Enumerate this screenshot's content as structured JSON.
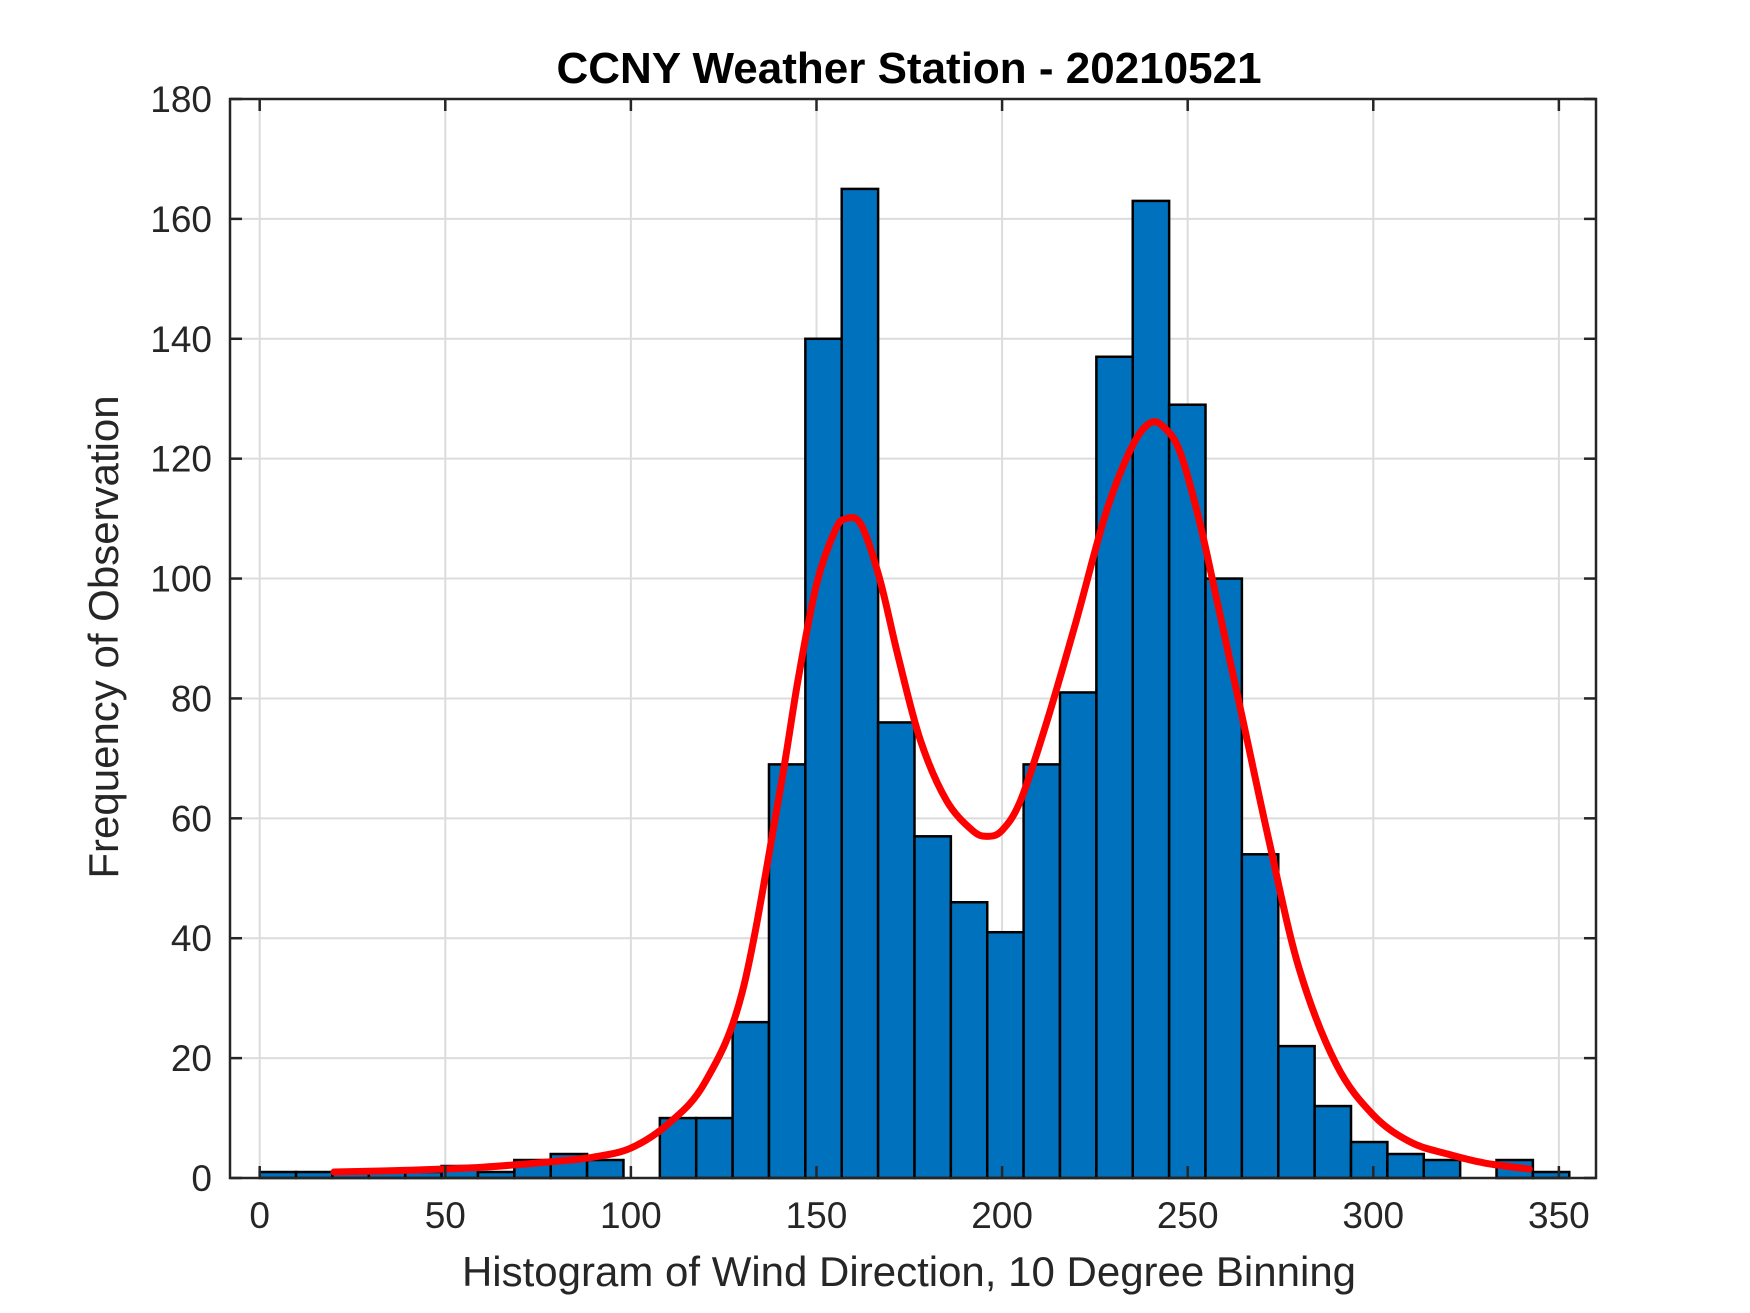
{
  "chart_data": {
    "type": "bar",
    "title": "CCNY Weather Station - 20210521",
    "xlabel": "Histogram of Wind Direction, 10 Degree Binning",
    "ylabel": "Frequency of Observation",
    "xlim": [
      -8,
      360
    ],
    "ylim": [
      0,
      180
    ],
    "xticks": [
      0,
      50,
      100,
      150,
      200,
      250,
      300,
      350
    ],
    "yticks": [
      0,
      20,
      40,
      60,
      80,
      100,
      120,
      140,
      160,
      180
    ],
    "grid": true,
    "bin_width": 9.8,
    "bins": [
      {
        "start": 0,
        "value": 1
      },
      {
        "start": 9.8,
        "value": 1
      },
      {
        "start": 19.6,
        "value": 1
      },
      {
        "start": 29.4,
        "value": 1
      },
      {
        "start": 39.2,
        "value": 1
      },
      {
        "start": 49.0,
        "value": 2
      },
      {
        "start": 58.8,
        "value": 1
      },
      {
        "start": 68.6,
        "value": 3
      },
      {
        "start": 78.4,
        "value": 4
      },
      {
        "start": 88.2,
        "value": 3
      },
      {
        "start": 107.8,
        "value": 10
      },
      {
        "start": 117.6,
        "value": 10
      },
      {
        "start": 127.4,
        "value": 26
      },
      {
        "start": 137.2,
        "value": 69
      },
      {
        "start": 147.0,
        "value": 140
      },
      {
        "start": 156.8,
        "value": 165
      },
      {
        "start": 166.6,
        "value": 76
      },
      {
        "start": 176.4,
        "value": 57
      },
      {
        "start": 186.2,
        "value": 46
      },
      {
        "start": 196.0,
        "value": 41
      },
      {
        "start": 205.8,
        "value": 69
      },
      {
        "start": 215.6,
        "value": 81
      },
      {
        "start": 225.4,
        "value": 137
      },
      {
        "start": 235.2,
        "value": 163
      },
      {
        "start": 245.0,
        "value": 129
      },
      {
        "start": 254.8,
        "value": 100
      },
      {
        "start": 264.6,
        "value": 54
      },
      {
        "start": 274.4,
        "value": 22
      },
      {
        "start": 284.2,
        "value": 12
      },
      {
        "start": 294.0,
        "value": 6
      },
      {
        "start": 303.8,
        "value": 4
      },
      {
        "start": 313.6,
        "value": 3
      },
      {
        "start": 333.2,
        "value": 3
      },
      {
        "start": 343.0,
        "value": 1
      }
    ],
    "fit_curve": {
      "name": "fitted density",
      "color": "#ff0000",
      "x": [
        20,
        40,
        60,
        80,
        90,
        100,
        110,
        120,
        130,
        140,
        145,
        150,
        155,
        158,
        162,
        167,
        172,
        178,
        185,
        192,
        196,
        200,
        205,
        212,
        220,
        228,
        235,
        240,
        244,
        248,
        253,
        258,
        265,
        272,
        280,
        290,
        300,
        310,
        320,
        330,
        342
      ],
      "y": [
        1,
        1.3,
        1.8,
        2.8,
        3.5,
        5,
        9,
        16,
        31,
        64,
        83,
        99,
        108,
        110,
        109,
        100,
        87,
        73,
        63,
        58,
        57,
        58,
        63,
        76,
        93,
        111,
        122,
        126,
        125,
        121,
        110,
        96,
        76,
        56,
        35,
        19,
        10.5,
        6,
        4,
        2.5,
        1.5
      ]
    },
    "bar_color": "#0072bd"
  }
}
